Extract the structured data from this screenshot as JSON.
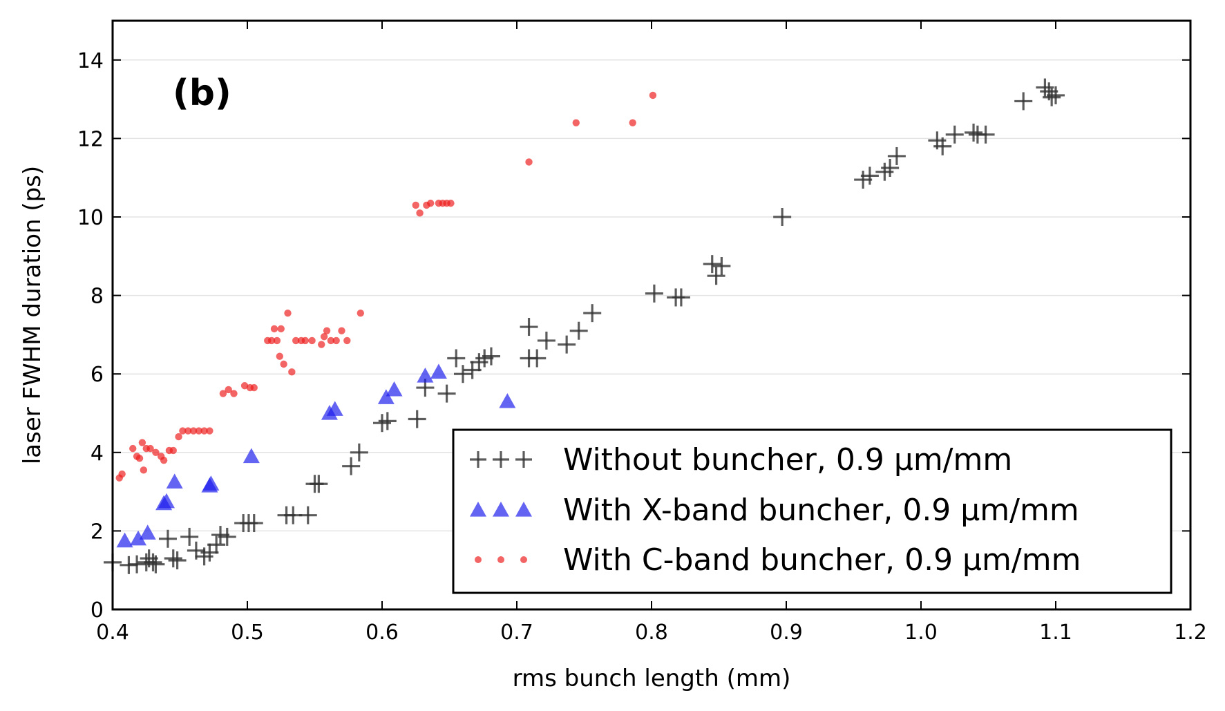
{
  "chart_data": {
    "type": "scatter",
    "annotation": "(b)",
    "xlabel": "rms bunch length (mm)",
    "ylabel": "laser FWHM duration (ps)",
    "xlim": [
      0.4,
      1.2
    ],
    "ylim": [
      0,
      15
    ],
    "xticks": [
      "0.4",
      "0.5",
      "0.6",
      "0.7",
      "0.8",
      "0.9",
      "1.0",
      "1.1",
      "1.2"
    ],
    "yticks": [
      "0",
      "2",
      "4",
      "6",
      "8",
      "10",
      "12",
      "14"
    ],
    "grid": "horizontal",
    "legend_position": "bottom-right",
    "series": [
      {
        "name": "Without buncher, 0.9 μm/mm",
        "marker": "plus",
        "color": "#333333",
        "points": [
          [
            0.4,
            1.2
          ],
          [
            0.412,
            1.13
          ],
          [
            0.418,
            1.15
          ],
          [
            0.425,
            1.2
          ],
          [
            0.427,
            1.3
          ],
          [
            0.43,
            1.2
          ],
          [
            0.432,
            1.15
          ],
          [
            0.441,
            1.8
          ],
          [
            0.445,
            1.3
          ],
          [
            0.448,
            1.25
          ],
          [
            0.457,
            1.85
          ],
          [
            0.462,
            1.5
          ],
          [
            0.468,
            1.35
          ],
          [
            0.472,
            1.45
          ],
          [
            0.477,
            1.65
          ],
          [
            0.48,
            1.9
          ],
          [
            0.485,
            1.85
          ],
          [
            0.497,
            2.2
          ],
          [
            0.501,
            2.2
          ],
          [
            0.505,
            2.2
          ],
          [
            0.529,
            2.4
          ],
          [
            0.534,
            2.4
          ],
          [
            0.545,
            2.4
          ],
          [
            0.55,
            3.2
          ],
          [
            0.553,
            3.2
          ],
          [
            0.577,
            3.65
          ],
          [
            0.583,
            4.0
          ],
          [
            0.6,
            4.75
          ],
          [
            0.604,
            4.8
          ],
          [
            0.626,
            4.85
          ],
          [
            0.632,
            5.65
          ],
          [
            0.648,
            5.5
          ],
          [
            0.655,
            6.4
          ],
          [
            0.66,
            6.0
          ],
          [
            0.667,
            6.1
          ],
          [
            0.672,
            6.3
          ],
          [
            0.676,
            6.4
          ],
          [
            0.681,
            6.45
          ],
          [
            0.709,
            7.2
          ],
          [
            0.709,
            6.4
          ],
          [
            0.715,
            6.4
          ],
          [
            0.722,
            6.85
          ],
          [
            0.737,
            6.75
          ],
          [
            0.746,
            7.1
          ],
          [
            0.756,
            7.55
          ],
          [
            0.802,
            8.05
          ],
          [
            0.818,
            7.95
          ],
          [
            0.822,
            7.95
          ],
          [
            0.845,
            8.8
          ],
          [
            0.848,
            8.5
          ],
          [
            0.852,
            8.75
          ],
          [
            0.897,
            10.0
          ],
          [
            0.957,
            10.95
          ],
          [
            0.962,
            11.05
          ],
          [
            0.973,
            11.15
          ],
          [
            0.977,
            11.25
          ],
          [
            0.982,
            11.55
          ],
          [
            1.012,
            11.95
          ],
          [
            1.016,
            11.8
          ],
          [
            1.025,
            12.1
          ],
          [
            1.039,
            12.15
          ],
          [
            1.042,
            12.1
          ],
          [
            1.048,
            12.1
          ],
          [
            1.076,
            12.95
          ],
          [
            1.092,
            13.3
          ],
          [
            1.095,
            13.2
          ],
          [
            1.097,
            13.05
          ],
          [
            1.1,
            13.1
          ]
        ]
      },
      {
        "name": "With X-band buncher, 0.9 μm/mm",
        "marker": "triangle",
        "color": "#1a1aee",
        "points": [
          [
            0.409,
            1.75
          ],
          [
            0.419,
            1.8
          ],
          [
            0.426,
            1.95
          ],
          [
            0.438,
            2.7
          ],
          [
            0.44,
            2.75
          ],
          [
            0.446,
            3.25
          ],
          [
            0.472,
            3.15
          ],
          [
            0.473,
            3.2
          ],
          [
            0.503,
            3.9
          ],
          [
            0.561,
            5.0
          ],
          [
            0.565,
            5.1
          ],
          [
            0.603,
            5.4
          ],
          [
            0.609,
            5.6
          ],
          [
            0.632,
            5.95
          ],
          [
            0.642,
            6.05
          ],
          [
            0.693,
            5.3
          ]
        ]
      },
      {
        "name": "With C-band buncher, 0.9 μm/mm",
        "marker": "dot",
        "color": "#ee1a1a",
        "points": [
          [
            0.405,
            3.35
          ],
          [
            0.407,
            3.45
          ],
          [
            0.415,
            4.1
          ],
          [
            0.418,
            3.9
          ],
          [
            0.42,
            3.85
          ],
          [
            0.422,
            4.25
          ],
          [
            0.423,
            3.55
          ],
          [
            0.425,
            4.1
          ],
          [
            0.428,
            4.1
          ],
          [
            0.432,
            4.0
          ],
          [
            0.436,
            3.9
          ],
          [
            0.438,
            3.8
          ],
          [
            0.442,
            4.05
          ],
          [
            0.445,
            4.05
          ],
          [
            0.449,
            4.4
          ],
          [
            0.452,
            4.55
          ],
          [
            0.456,
            4.55
          ],
          [
            0.46,
            4.55
          ],
          [
            0.464,
            4.55
          ],
          [
            0.468,
            4.55
          ],
          [
            0.472,
            4.55
          ],
          [
            0.482,
            5.5
          ],
          [
            0.486,
            5.6
          ],
          [
            0.49,
            5.5
          ],
          [
            0.498,
            5.7
          ],
          [
            0.502,
            5.65
          ],
          [
            0.505,
            5.65
          ],
          [
            0.515,
            6.85
          ],
          [
            0.518,
            6.85
          ],
          [
            0.52,
            7.15
          ],
          [
            0.522,
            6.85
          ],
          [
            0.525,
            7.15
          ],
          [
            0.524,
            6.45
          ],
          [
            0.527,
            6.25
          ],
          [
            0.53,
            7.55
          ],
          [
            0.533,
            6.05
          ],
          [
            0.536,
            6.85
          ],
          [
            0.54,
            6.85
          ],
          [
            0.543,
            6.85
          ],
          [
            0.548,
            6.85
          ],
          [
            0.555,
            6.75
          ],
          [
            0.557,
            6.95
          ],
          [
            0.559,
            7.1
          ],
          [
            0.562,
            6.85
          ],
          [
            0.566,
            6.85
          ],
          [
            0.57,
            7.1
          ],
          [
            0.574,
            6.85
          ],
          [
            0.584,
            7.55
          ],
          [
            0.625,
            10.3
          ],
          [
            0.628,
            10.1
          ],
          [
            0.633,
            10.3
          ],
          [
            0.636,
            10.35
          ],
          [
            0.642,
            10.35
          ],
          [
            0.645,
            10.35
          ],
          [
            0.648,
            10.35
          ],
          [
            0.651,
            10.35
          ],
          [
            0.709,
            11.4
          ],
          [
            0.744,
            12.4
          ],
          [
            0.786,
            12.4
          ],
          [
            0.801,
            13.1
          ]
        ]
      }
    ]
  }
}
